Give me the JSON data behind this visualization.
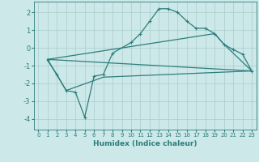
{
  "xlabel": "Humidex (Indice chaleur)",
  "bg_color": "#cce8e8",
  "grid_color": "#aacccc",
  "line_color": "#2e7d7d",
  "xlim": [
    -0.5,
    23.5
  ],
  "ylim": [
    -4.6,
    2.6
  ],
  "yticks": [
    -4,
    -3,
    -2,
    -1,
    0,
    1,
    2
  ],
  "xticks": [
    0,
    1,
    2,
    3,
    4,
    5,
    6,
    7,
    8,
    9,
    10,
    11,
    12,
    13,
    14,
    15,
    16,
    17,
    18,
    19,
    20,
    21,
    22,
    23
  ],
  "line1_x": [
    1,
    2,
    3,
    4,
    5,
    6,
    7,
    8,
    10,
    11,
    12,
    13,
    14,
    15,
    16,
    17,
    18,
    19,
    20,
    21,
    22,
    23
  ],
  "line1_y": [
    -0.7,
    -1.5,
    -2.4,
    -2.5,
    -3.9,
    -1.6,
    -1.5,
    -0.3,
    0.3,
    0.8,
    1.5,
    2.2,
    2.2,
    2.0,
    1.5,
    1.1,
    1.1,
    0.8,
    0.2,
    -0.1,
    -0.35,
    -1.3
  ],
  "line2_x": [
    1,
    3,
    7,
    23
  ],
  "line2_y": [
    -0.65,
    -2.4,
    -1.65,
    -1.3
  ],
  "line3_x": [
    1,
    23
  ],
  "line3_y": [
    -0.65,
    -1.3
  ],
  "line4_x": [
    1,
    19,
    20,
    23
  ],
  "line4_y": [
    -0.65,
    0.8,
    0.2,
    -1.3
  ]
}
